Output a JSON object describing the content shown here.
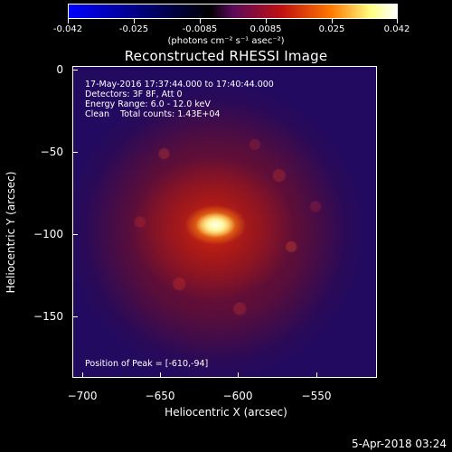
{
  "colorbar": {
    "tick_labels": [
      "-0.042",
      "-0.025",
      "-0.0085",
      "0.0085",
      "0.025",
      "0.042"
    ],
    "units": "(photons cm⁻² s⁻¹ asec⁻²)",
    "range": [
      -0.042,
      0.042
    ],
    "colors": [
      "#0000ff",
      "#000000",
      "#5a0a5a",
      "#c01010",
      "#ff7a00",
      "#ffff80",
      "#ffffff"
    ]
  },
  "plot": {
    "title": "Reconstructed RHESSI Image",
    "info_lines": [
      "17-May-2016 17:37:44.000 to 17:40:44.000",
      "Detectors: 3F 8F, Att 0",
      "Energy Range: 6.0 - 12.0 keV",
      "Clean    Total counts: 1.43E+04"
    ],
    "peak_text": "Position of Peak = [-610,-94]",
    "x_axis": {
      "title": "Heliocentric X (arcsec)",
      "tick_labels": [
        "−700",
        "−650",
        "−600",
        "−550"
      ],
      "range": [
        -712,
        -517
      ]
    },
    "y_axis": {
      "title": "Heliocentric Y (arcsec)",
      "tick_labels": [
        "0",
        "−50",
        "−100",
        "−150"
      ],
      "range": [
        -190,
        2
      ]
    }
  },
  "footer": {
    "timestamp": "5-Apr-2018 03:24"
  }
}
